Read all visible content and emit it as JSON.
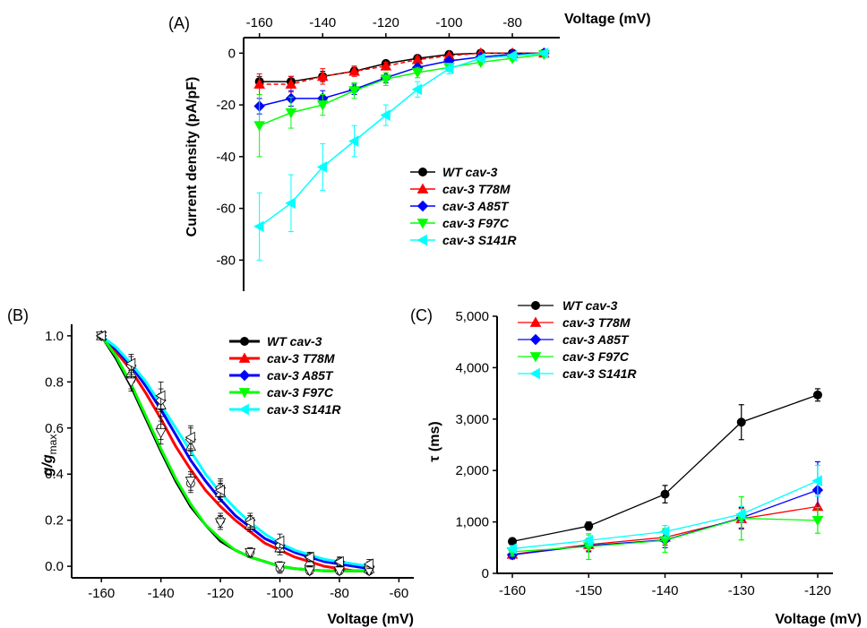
{
  "chart_data": [
    {
      "panel": "(A)",
      "type": "line",
      "xlabel": "Voltage (mV)",
      "ylabel": "Current density (pA/pF)",
      "xlim": [
        -165,
        -65
      ],
      "ylim": [
        -92,
        6
      ],
      "x_ticks": [
        -160,
        -140,
        -120,
        -100,
        -80
      ],
      "y_ticks": [
        0,
        -20,
        -40,
        -60,
        -80
      ],
      "x_axis_position": "top",
      "legend_position": "lower-right",
      "x": [
        -160,
        -150,
        -140,
        -130,
        -120,
        -110,
        -100,
        -90,
        -80,
        -70
      ],
      "series": [
        {
          "name": "WT cav-3",
          "color": "#000000",
          "marker": "circle",
          "values": [
            -11,
            -11,
            -9,
            -7,
            -4,
            -2,
            -0.5,
            0,
            0,
            0
          ],
          "errors": [
            2,
            2,
            2,
            1.5,
            1,
            1,
            0.5,
            0.5,
            0.5,
            0.5
          ]
        },
        {
          "name": "cav-3 T78M",
          "color": "#ff0000",
          "marker": "triangle-up",
          "values": [
            -12,
            -12,
            -9,
            -7,
            -5,
            -2.5,
            -1,
            0,
            0,
            0
          ],
          "errors": [
            4,
            3,
            3,
            2,
            1.5,
            1,
            0.5,
            0.5,
            0.5,
            0.5
          ]
        },
        {
          "name": "cav-3 A85T",
          "color": "#0000ff",
          "marker": "diamond",
          "values": [
            -20.5,
            -17.5,
            -17.5,
            -14,
            -9.5,
            -5.5,
            -3,
            -1.5,
            -0.5,
            0
          ],
          "errors": [
            3,
            3,
            3,
            2,
            2,
            1,
            1,
            0.5,
            0.5,
            0.5
          ]
        },
        {
          "name": "cav-3 F97C",
          "color": "#00ff00",
          "marker": "triangle-down",
          "values": [
            -28,
            -23,
            -20,
            -14.5,
            -10,
            -7.5,
            -5.5,
            -3.5,
            -2,
            -0.5
          ],
          "errors": [
            12,
            6,
            4,
            3,
            2.5,
            2,
            1.5,
            1,
            1,
            0.5
          ]
        },
        {
          "name": "cav-3 S141R",
          "color": "#00ffff",
          "marker": "triangle-left",
          "values": [
            -67,
            -58,
            -44,
            -34,
            -24,
            -14,
            -6,
            -2,
            -1,
            0
          ],
          "errors": [
            13,
            11,
            9,
            6,
            4,
            3,
            2,
            1,
            0.5,
            0.5
          ]
        }
      ]
    },
    {
      "panel": "(B)",
      "type": "line",
      "xlabel": "Voltage (mV)",
      "ylabel": "g/g",
      "ylabel_sub": "max",
      "xlim": [
        -170,
        -55
      ],
      "ylim": [
        -0.05,
        1.05
      ],
      "x_ticks": [
        -160,
        -140,
        -120,
        -100,
        -80,
        -60
      ],
      "y_ticks": [
        0.0,
        0.2,
        0.4,
        0.6,
        0.8,
        1.0
      ],
      "y_tick_labels": [
        "0.0",
        "0.2",
        "0.4",
        "0.6",
        "0.8",
        "1.0"
      ],
      "legend_position": "top-right",
      "fit_x": [
        -160,
        -155,
        -150,
        -145,
        -140,
        -135,
        -130,
        -125,
        -120,
        -115,
        -110,
        -105,
        -100,
        -95,
        -90,
        -85,
        -80,
        -75,
        -70
      ],
      "points_x": [
        -160,
        -150,
        -140,
        -130,
        -120,
        -110,
        -100,
        -90,
        -80,
        -70
      ],
      "series": [
        {
          "name": "WT cav-3",
          "color": "#000000",
          "marker": "circle",
          "fit": [
            1.0,
            0.9,
            0.78,
            0.64,
            0.5,
            0.37,
            0.26,
            0.18,
            0.11,
            0.07,
            0.04,
            0.02,
            0.0,
            -0.01,
            -0.015,
            -0.02,
            -0.02,
            -0.02,
            -0.02
          ],
          "points": [
            1.0,
            0.81,
            0.6,
            0.36,
            0.2,
            0.06,
            -0.01,
            -0.02,
            -0.02,
            -0.02
          ],
          "errors": [
            0.01,
            0.04,
            0.05,
            0.04,
            0.03,
            0.02,
            0.02,
            0.01,
            0.01,
            0.01
          ]
        },
        {
          "name": "cav-3 T78M",
          "color": "#ff0000",
          "marker": "triangle-up",
          "fit": [
            1.0,
            0.93,
            0.85,
            0.75,
            0.64,
            0.52,
            0.42,
            0.33,
            0.26,
            0.2,
            0.15,
            0.1,
            0.07,
            0.04,
            0.02,
            0.0,
            -0.01,
            -0.02,
            -0.02
          ],
          "points": [
            1.0,
            0.84,
            0.7,
            0.52,
            0.32,
            0.18,
            0.08,
            0.02,
            0.0,
            -0.01
          ],
          "errors": [
            0.01,
            0.04,
            0.05,
            0.04,
            0.04,
            0.03,
            0.03,
            0.02,
            0.02,
            0.02
          ]
        },
        {
          "name": "cav-3 A85T",
          "color": "#0000ff",
          "marker": "diamond",
          "fit": [
            1.0,
            0.94,
            0.87,
            0.78,
            0.68,
            0.57,
            0.46,
            0.37,
            0.29,
            0.22,
            0.17,
            0.12,
            0.09,
            0.06,
            0.04,
            0.02,
            0.01,
            0.0,
            -0.01
          ],
          "points": [
            1.0,
            0.87,
            0.72,
            0.55,
            0.34,
            0.2,
            0.09,
            0.04,
            0.02,
            0.0
          ],
          "errors": [
            0.01,
            0.04,
            0.05,
            0.05,
            0.04,
            0.03,
            0.03,
            0.02,
            0.02,
            0.02
          ]
        },
        {
          "name": "cav-3 F97C",
          "color": "#00ff00",
          "marker": "triangle-down",
          "fit": [
            1.0,
            0.91,
            0.79,
            0.65,
            0.51,
            0.38,
            0.27,
            0.18,
            0.12,
            0.07,
            0.04,
            0.02,
            0.0,
            -0.01,
            -0.015,
            -0.02,
            -0.02,
            -0.02,
            -0.02
          ],
          "points": [
            1.0,
            0.8,
            0.58,
            0.37,
            0.19,
            0.06,
            0.0,
            -0.02,
            -0.02,
            -0.02
          ],
          "errors": [
            0.01,
            0.04,
            0.05,
            0.04,
            0.03,
            0.02,
            0.02,
            0.01,
            0.01,
            0.01
          ]
        },
        {
          "name": "cav-3 S141R",
          "color": "#00ffff",
          "marker": "triangle-left",
          "fit": [
            1.0,
            0.95,
            0.88,
            0.8,
            0.7,
            0.6,
            0.5,
            0.4,
            0.32,
            0.25,
            0.19,
            0.14,
            0.1,
            0.07,
            0.05,
            0.03,
            0.02,
            0.01,
            0.0
          ],
          "points": [
            1.0,
            0.88,
            0.74,
            0.56,
            0.33,
            0.19,
            0.11,
            0.04,
            0.02,
            0.01
          ],
          "errors": [
            0.01,
            0.04,
            0.06,
            0.05,
            0.04,
            0.03,
            0.03,
            0.02,
            0.02,
            0.02
          ]
        }
      ]
    },
    {
      "panel": "(C)",
      "type": "line",
      "xlabel": "Voltage (mV)",
      "ylabel": "τ (ms)",
      "xlim": [
        -162,
        -118
      ],
      "ylim": [
        0,
        5000
      ],
      "x_ticks": [
        -160,
        -150,
        -140,
        -130,
        -120
      ],
      "y_ticks": [
        0,
        1000,
        2000,
        3000,
        4000,
        5000
      ],
      "y_tick_labels": [
        "0",
        "1,000",
        "2,000",
        "3,000",
        "4,000",
        "5,000"
      ],
      "legend_position": "top-left",
      "x": [
        -160,
        -150,
        -140,
        -130,
        -120
      ],
      "series": [
        {
          "name": "WT cav-3",
          "color": "#000000",
          "marker": "circle",
          "values": [
            620,
            920,
            1540,
            2940,
            3470
          ],
          "errors": [
            60,
            80,
            170,
            340,
            120
          ]
        },
        {
          "name": "cav-3 T78M",
          "color": "#ff0000",
          "marker": "triangle-up",
          "values": [
            370,
            560,
            700,
            1060,
            1300
          ],
          "errors": [
            80,
            120,
            150,
            200,
            250
          ]
        },
        {
          "name": "cav-3 A85T",
          "color": "#0000ff",
          "marker": "diamond",
          "values": [
            360,
            540,
            650,
            1080,
            1620
          ],
          "errors": [
            80,
            120,
            150,
            200,
            550
          ]
        },
        {
          "name": "cav-3 F97C",
          "color": "#00ff00",
          "marker": "triangle-down",
          "values": [
            420,
            520,
            640,
            1070,
            1030
          ],
          "errors": [
            80,
            250,
            230,
            420,
            250
          ]
        },
        {
          "name": "cav-3 S141R",
          "color": "#00ffff",
          "marker": "triangle-left",
          "values": [
            480,
            640,
            810,
            1150,
            1800
          ],
          "errors": [
            60,
            100,
            120,
            150,
            300
          ]
        }
      ]
    }
  ]
}
